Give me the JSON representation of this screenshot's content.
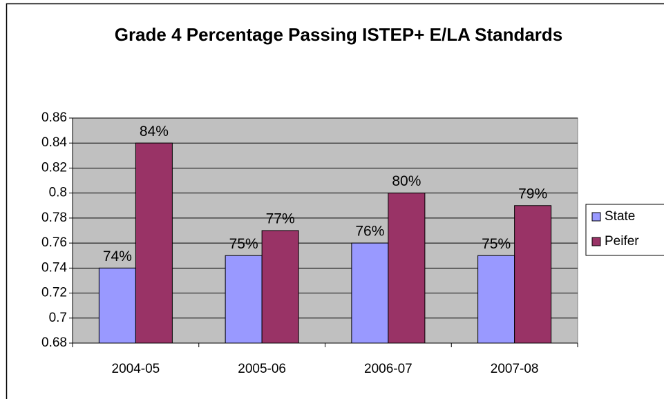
{
  "chart_data": {
    "type": "bar",
    "title": "Grade 4 Percentage Passing ISTEP+ E/LA Standards",
    "categories": [
      "2004-05",
      "2005-06",
      "2006-07",
      "2007-08"
    ],
    "series": [
      {
        "name": "State",
        "color": "#9999ff",
        "values": [
          0.74,
          0.75,
          0.76,
          0.75
        ],
        "value_labels": [
          "74%",
          "75%",
          "76%",
          "75%"
        ]
      },
      {
        "name": "Peifer",
        "color": "#993366",
        "values": [
          0.84,
          0.77,
          0.8,
          0.79
        ],
        "value_labels": [
          "84%",
          "77%",
          "80%",
          "79%"
        ]
      }
    ],
    "ylim": [
      0.68,
      0.86
    ],
    "yticks": [
      0.68,
      0.7,
      0.72,
      0.74,
      0.76,
      0.78,
      0.8,
      0.82,
      0.84,
      0.86
    ],
    "grid": true,
    "legend": "right",
    "plot_background": "#c0c0c0"
  }
}
